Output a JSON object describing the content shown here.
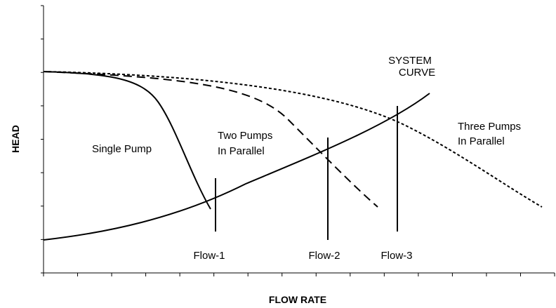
{
  "axes": {
    "y_label": "HEAD",
    "x_label": "FLOW RATE"
  },
  "curves": {
    "single": "Single Pump",
    "two": [
      "Two Pumps",
      "In Parallel"
    ],
    "three": [
      "Three Pumps",
      "In Parallel"
    ],
    "system": [
      "SYSTEM",
      "CURVE"
    ]
  },
  "flows": [
    "Flow-1",
    "Flow-2",
    "Flow-3"
  ]
}
